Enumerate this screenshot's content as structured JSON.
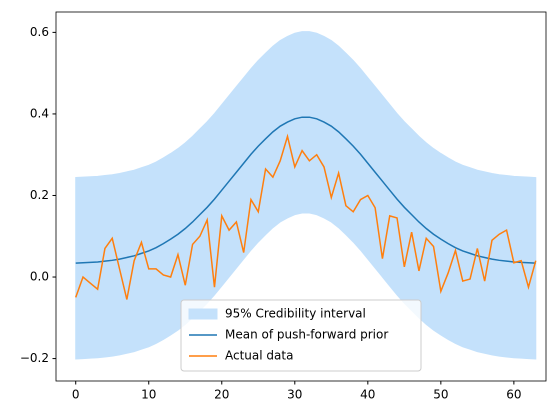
{
  "chart_data": {
    "type": "line",
    "x": [
      0,
      1,
      2,
      3,
      4,
      5,
      6,
      7,
      8,
      9,
      10,
      11,
      12,
      13,
      14,
      15,
      16,
      17,
      18,
      19,
      20,
      21,
      22,
      23,
      24,
      25,
      26,
      27,
      28,
      29,
      30,
      31,
      32,
      33,
      34,
      35,
      36,
      37,
      38,
      39,
      40,
      41,
      42,
      43,
      44,
      45,
      46,
      47,
      48,
      49,
      50,
      51,
      52,
      53,
      54,
      55,
      56,
      57,
      58,
      59,
      60,
      61,
      62,
      63
    ],
    "band": {
      "name": "95% Credibility interval",
      "color": "#c4e1fb",
      "upper": [
        0.244,
        0.245,
        0.246,
        0.247,
        0.249,
        0.251,
        0.254,
        0.258,
        0.262,
        0.268,
        0.274,
        0.282,
        0.292,
        0.303,
        0.315,
        0.329,
        0.345,
        0.363,
        0.381,
        0.401,
        0.423,
        0.445,
        0.467,
        0.489,
        0.511,
        0.531,
        0.549,
        0.566,
        0.58,
        0.59,
        0.598,
        0.602,
        0.602,
        0.598,
        0.59,
        0.58,
        0.566,
        0.549,
        0.531,
        0.511,
        0.489,
        0.467,
        0.445,
        0.423,
        0.401,
        0.381,
        0.363,
        0.345,
        0.329,
        0.315,
        0.303,
        0.292,
        0.282,
        0.274,
        0.268,
        0.262,
        0.258,
        0.254,
        0.251,
        0.249,
        0.247,
        0.246,
        0.245,
        0.244
      ],
      "lower": [
        -0.201,
        -0.2,
        -0.199,
        -0.198,
        -0.196,
        -0.194,
        -0.191,
        -0.187,
        -0.183,
        -0.177,
        -0.171,
        -0.163,
        -0.153,
        -0.142,
        -0.13,
        -0.116,
        -0.1,
        -0.082,
        -0.064,
        -0.044,
        -0.022,
        0.0,
        0.022,
        0.044,
        0.066,
        0.086,
        0.104,
        0.121,
        0.135,
        0.145,
        0.153,
        0.157,
        0.157,
        0.153,
        0.145,
        0.135,
        0.121,
        0.104,
        0.086,
        0.066,
        0.044,
        0.022,
        0.0,
        -0.022,
        -0.044,
        -0.064,
        -0.082,
        -0.1,
        -0.116,
        -0.13,
        -0.142,
        -0.153,
        -0.163,
        -0.171,
        -0.177,
        -0.183,
        -0.187,
        -0.191,
        -0.194,
        -0.196,
        -0.198,
        -0.199,
        -0.2,
        -0.201
      ]
    },
    "series": [
      {
        "name": "Mean of push-forward prior",
        "color": "#1f77b4",
        "values": [
          0.034,
          0.035,
          0.036,
          0.037,
          0.039,
          0.041,
          0.044,
          0.048,
          0.052,
          0.058,
          0.064,
          0.072,
          0.082,
          0.093,
          0.105,
          0.119,
          0.135,
          0.153,
          0.171,
          0.191,
          0.213,
          0.235,
          0.257,
          0.279,
          0.301,
          0.321,
          0.339,
          0.356,
          0.37,
          0.38,
          0.388,
          0.392,
          0.392,
          0.388,
          0.38,
          0.37,
          0.356,
          0.339,
          0.321,
          0.301,
          0.279,
          0.257,
          0.235,
          0.213,
          0.191,
          0.171,
          0.153,
          0.135,
          0.119,
          0.105,
          0.093,
          0.082,
          0.072,
          0.064,
          0.058,
          0.052,
          0.048,
          0.044,
          0.041,
          0.039,
          0.037,
          0.036,
          0.035,
          0.034
        ]
      },
      {
        "name": "Actual data",
        "color": "#ff7f0e",
        "values": [
          -0.05,
          0.0,
          -0.015,
          -0.03,
          0.07,
          0.095,
          0.02,
          -0.055,
          0.04,
          0.085,
          0.02,
          0.02,
          0.005,
          0.0,
          0.055,
          -0.02,
          0.08,
          0.1,
          0.14,
          -0.025,
          0.15,
          0.115,
          0.135,
          0.06,
          0.19,
          0.16,
          0.265,
          0.245,
          0.285,
          0.345,
          0.27,
          0.31,
          0.285,
          0.3,
          0.27,
          0.195,
          0.255,
          0.175,
          0.16,
          0.19,
          0.2,
          0.17,
          0.045,
          0.15,
          0.145,
          0.025,
          0.11,
          0.015,
          0.095,
          0.075,
          -0.035,
          0.01,
          0.065,
          -0.01,
          -0.005,
          0.07,
          -0.01,
          0.09,
          0.105,
          0.115,
          0.035,
          0.04,
          -0.025,
          0.04
        ]
      }
    ],
    "xlim": [
      -2.7,
      64.4
    ],
    "ylim": [
      -0.255,
      0.65
    ],
    "xticks": [
      0,
      10,
      20,
      30,
      40,
      50,
      60
    ],
    "yticks": [
      {
        "value": -0.2,
        "label": "−0.2"
      },
      {
        "value": 0.0,
        "label": "0.0"
      },
      0.2,
      0.4,
      0.6
    ],
    "legend": "lower center"
  }
}
